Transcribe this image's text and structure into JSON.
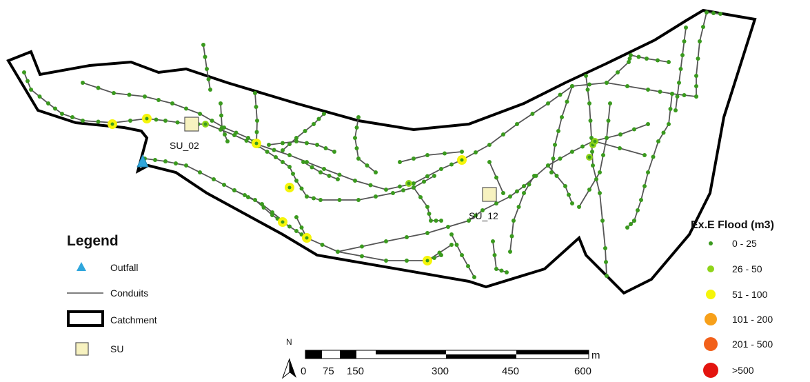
{
  "map": {
    "unit_labels": [
      {
        "id": "su02",
        "text": "SU_02"
      },
      {
        "id": "su12",
        "text": "SU_12"
      }
    ]
  },
  "legend": {
    "title": "Legend",
    "outfall": "Outfall",
    "conduits": "Conduits",
    "catchment": "Catchment",
    "su": "SU"
  },
  "flood_legend": {
    "title": "Ex.E Flood (m3)",
    "classes": [
      {
        "label": "0 - 25",
        "color": "#3a9a1e"
      },
      {
        "label": "26 - 50",
        "color": "#8fd41a"
      },
      {
        "label": "51 - 100",
        "color": "#f5f50a"
      },
      {
        "label": "101 - 200",
        "color": "#f7a01a"
      },
      {
        "label": "201 - 500",
        "color": "#f2601a"
      },
      {
        "label": ">500",
        "color": "#e3140f"
      }
    ]
  },
  "scale_bar": {
    "unit": "m",
    "ticks": [
      "0",
      "75",
      "150",
      "300",
      "450",
      "600"
    ]
  },
  "north_arrow": {
    "label": "N"
  },
  "colors": {
    "outfall": "#2fa6dc",
    "su_fill": "#f7f2c0",
    "conduit": "#555555",
    "catchment": "#000000"
  }
}
